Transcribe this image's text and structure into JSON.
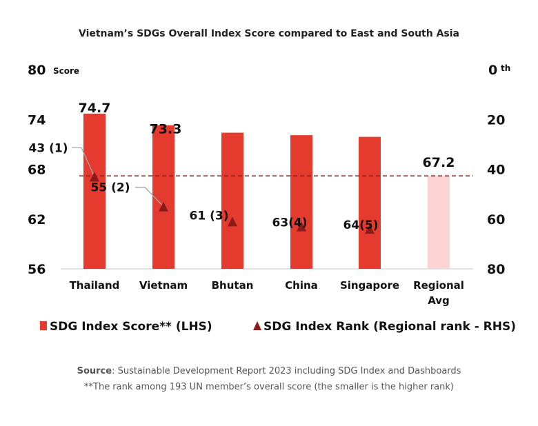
{
  "chart_data": {
    "type": "bar",
    "title": "Vietnam’s SDGs Overall Index Score compared to East and South Asia",
    "categories": [
      "Thailand",
      "Vietnam",
      "Bhutan",
      "China",
      "Singapore",
      "Regional Avg"
    ],
    "series": [
      {
        "name": "SDG Index Score** (LHS)",
        "type": "bar",
        "axis": "left",
        "values": [
          74.7,
          73.3,
          72.4,
          72.1,
          71.9,
          67.2
        ],
        "data_labels": [
          "74.7",
          "73.3",
          "",
          "",
          "",
          "67.2"
        ],
        "color": "#e53b2f",
        "highlight_color": "#fdd3d3"
      },
      {
        "name": "SDG Index Rank (Regional rank - RHS)",
        "type": "scatter",
        "marker": "triangle",
        "axis": "right",
        "values": [
          43,
          55,
          61,
          63,
          64,
          null
        ],
        "regional_ranks": [
          1,
          2,
          3,
          4,
          5,
          null
        ],
        "data_labels": [
          "43 (1)",
          "55 (2)",
          "61 (3)",
          "63(4)",
          "64(5)",
          ""
        ],
        "color": "#8b1a1a"
      }
    ],
    "reference_line": {
      "value": 67.2,
      "style": "dashed",
      "color": "#8b1a1a"
    },
    "left_axis": {
      "unit_label": "Score",
      "ylim": [
        56,
        80
      ],
      "ticks": [
        "56",
        "62",
        "68",
        "74",
        "80"
      ]
    },
    "right_axis": {
      "unit_label": "th",
      "ylim": [
        0,
        80
      ],
      "inverted": true,
      "ticks": [
        "0",
        "20",
        "40",
        "60",
        "80"
      ]
    },
    "category_labels": [
      [
        "Thailand"
      ],
      [
        "Vietnam"
      ],
      [
        "Bhutan"
      ],
      [
        "China"
      ],
      [
        "Singapore"
      ],
      [
        "Regional",
        "Avg"
      ]
    ],
    "legend_position": "bottom",
    "grid": false
  },
  "notes": {
    "source_label": "Source",
    "source_text": ": Sustainable Development Report 2023 including SDG Index and Dashboards",
    "footnote": "**The rank among 193 UN member’s overall score (the smaller is the higher rank)"
  }
}
